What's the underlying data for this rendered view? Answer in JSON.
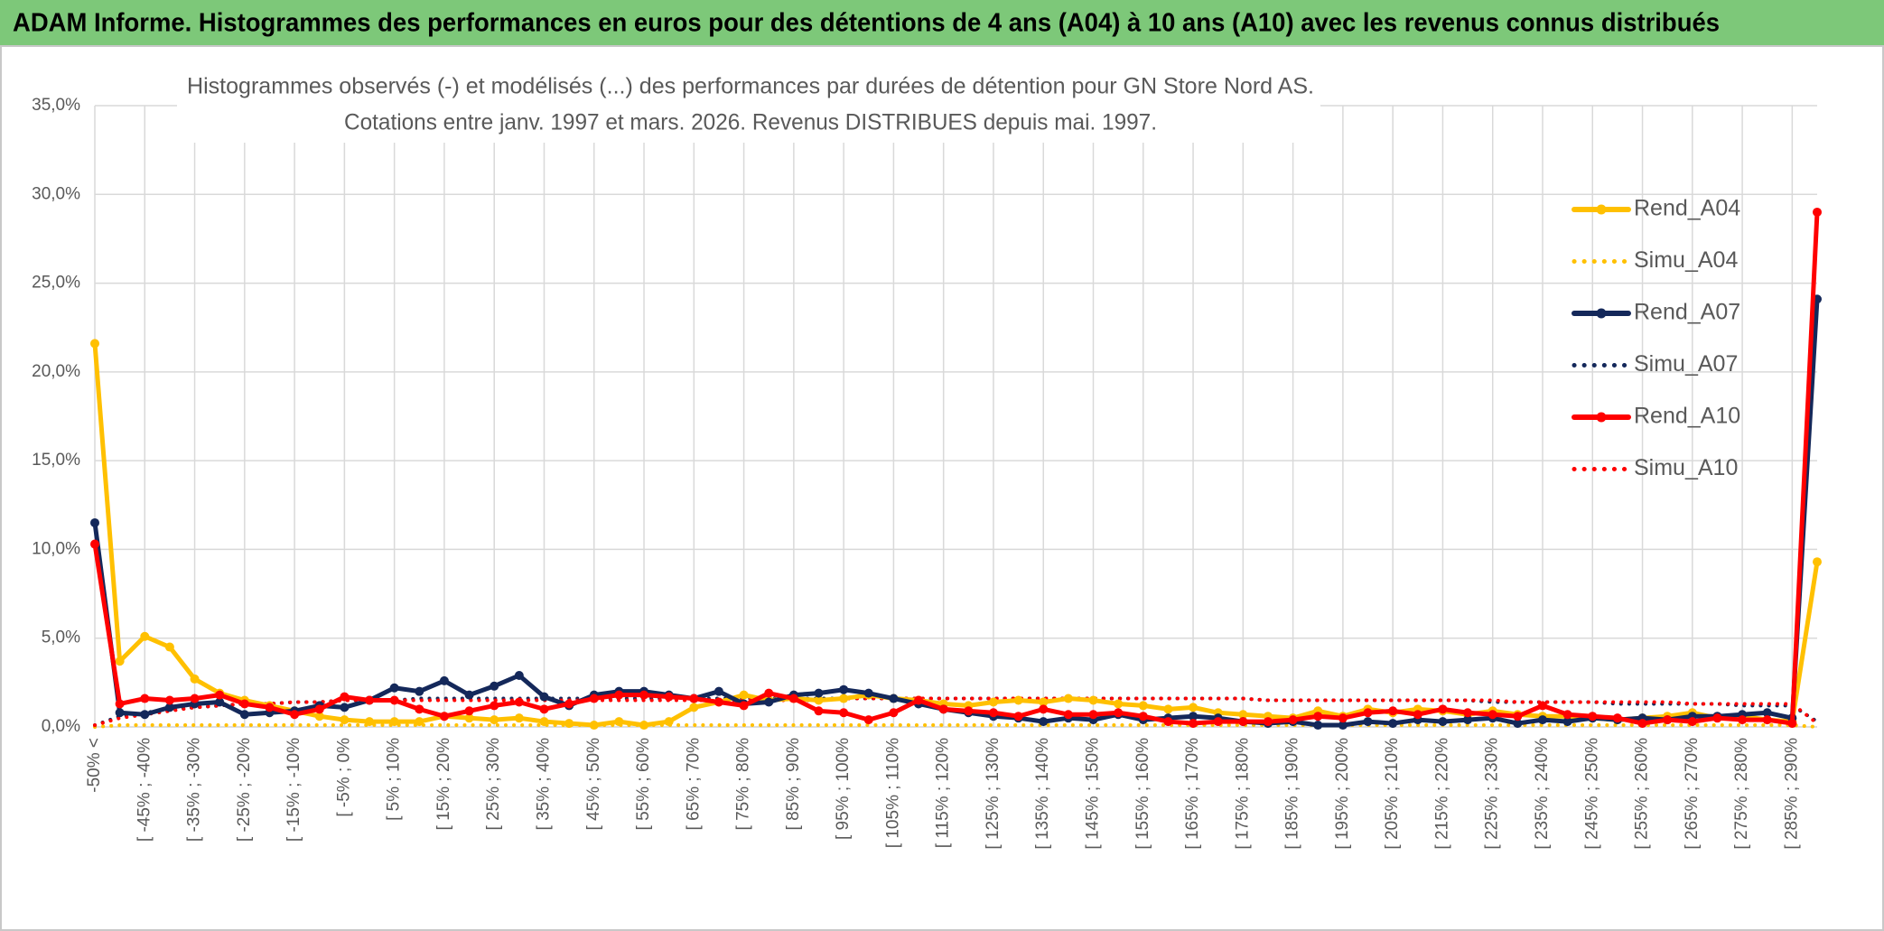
{
  "chart_data": {
    "type": "line",
    "title": "ADAM Informe. Histogrammes des performances en euros pour des détentions de 4 ans (A04) à 10 ans (A10) avec les revenus connus distribués",
    "subtitle": [
      "Histogrammes observés (-) et modélisés (...) des performances par durées de détention pour GN Store Nord AS.",
      "Cotations entre janv. 1997 et mars. 2026. Revenus DISTRIBUES depuis mai. 1997."
    ],
    "categories": [
      "-50% <",
      null,
      "[ -45% ; -40%",
      null,
      "[ -35% ; -30%",
      null,
      "[ -25% ; -20%",
      null,
      "[ -15% ; -10%",
      null,
      "[ -5% ; 0%",
      null,
      "[ 5% ; 10%",
      null,
      "[ 15% ; 20%",
      null,
      "[ 25% ; 30%",
      null,
      "[ 35% ; 40%",
      null,
      "[ 45% ; 50%",
      null,
      "[ 55% ; 60%",
      null,
      "[ 65% ; 70%",
      null,
      "[ 75% ; 80%",
      null,
      "[ 85% ; 90%",
      null,
      "[ 95% ; 100%",
      null,
      "[ 105% ; 110%",
      null,
      "[ 115% ; 120%",
      null,
      "[ 125% ; 130%",
      null,
      "[ 135% ; 140%",
      null,
      "[ 145% ; 150%",
      null,
      "[ 155% ; 160%",
      null,
      "[ 165% ; 170%",
      null,
      "[ 175% ; 180%",
      null,
      "[ 185% ; 190%",
      null,
      "[ 195% ; 200%",
      null,
      "[ 205% ; 210%",
      null,
      "[ 215% ; 220%",
      null,
      "[ 225% ; 230%",
      null,
      "[ 235% ; 240%",
      null,
      "[ 245% ; 250%",
      null,
      "[ 255% ; 260%",
      null,
      "[ 265% ; 270%",
      null,
      "[ 275% ; 280%",
      null,
      "[ 285% ; 290%",
      null
    ],
    "series": [
      {
        "name": "Rend_A04",
        "color": "#ffc000",
        "style": "solid",
        "marker": true,
        "values": [
          21.6,
          3.7,
          5.1,
          4.5,
          2.7,
          1.9,
          1.5,
          1.2,
          0.9,
          0.6,
          0.4,
          0.3,
          0.3,
          0.3,
          0.6,
          0.5,
          0.4,
          0.5,
          0.3,
          0.2,
          0.1,
          0.3,
          0.1,
          0.3,
          1.1,
          1.4,
          1.8,
          1.5,
          1.6,
          1.5,
          1.6,
          1.8,
          1.6,
          1.5,
          1.3,
          1.2,
          1.4,
          1.5,
          1.4,
          1.6,
          1.5,
          1.3,
          1.2,
          1.0,
          1.1,
          0.8,
          0.7,
          0.6,
          0.5,
          0.9,
          0.6,
          1.0,
          0.8,
          1.0,
          0.9,
          0.7,
          0.9,
          0.7,
          0.6,
          0.6,
          0.5,
          0.4,
          0.5,
          0.6,
          0.8,
          0.5,
          0.6,
          0.4,
          0.3,
          9.3
        ]
      },
      {
        "name": "Simu_A04",
        "color": "#ffc000",
        "style": "dotted",
        "marker": false,
        "values": [
          0.0,
          0.1,
          0.1,
          0.1,
          0.1,
          0.1,
          0.1,
          0.1,
          0.1,
          0.1,
          0.1,
          0.1,
          0.1,
          0.1,
          0.1,
          0.1,
          0.1,
          0.1,
          0.1,
          0.1,
          0.1,
          0.1,
          0.1,
          0.1,
          0.1,
          0.1,
          0.1,
          0.1,
          0.1,
          0.1,
          0.1,
          0.1,
          0.1,
          0.1,
          0.1,
          0.1,
          0.1,
          0.1,
          0.1,
          0.1,
          0.1,
          0.1,
          0.1,
          0.1,
          0.1,
          0.1,
          0.1,
          0.1,
          0.1,
          0.1,
          0.1,
          0.1,
          0.1,
          0.1,
          0.1,
          0.1,
          0.1,
          0.1,
          0.1,
          0.1,
          0.1,
          0.1,
          0.1,
          0.1,
          0.1,
          0.1,
          0.1,
          0.1,
          0.1,
          0.0
        ]
      },
      {
        "name": "Rend_A07",
        "color": "#14285a",
        "style": "solid",
        "marker": true,
        "values": [
          11.5,
          0.8,
          0.7,
          1.1,
          1.3,
          1.4,
          0.7,
          0.8,
          0.9,
          1.2,
          1.1,
          1.5,
          2.2,
          2.0,
          2.6,
          1.8,
          2.3,
          2.9,
          1.7,
          1.2,
          1.8,
          2.0,
          2.0,
          1.8,
          1.6,
          2.0,
          1.3,
          1.4,
          1.8,
          1.9,
          2.1,
          1.9,
          1.6,
          1.3,
          1.0,
          0.8,
          0.6,
          0.5,
          0.3,
          0.5,
          0.4,
          0.7,
          0.4,
          0.5,
          0.6,
          0.5,
          0.3,
          0.2,
          0.3,
          0.1,
          0.1,
          0.3,
          0.2,
          0.4,
          0.3,
          0.4,
          0.5,
          0.2,
          0.4,
          0.3,
          0.5,
          0.4,
          0.5,
          0.4,
          0.6,
          0.6,
          0.7,
          0.8,
          0.5,
          24.1
        ]
      },
      {
        "name": "Simu_A07",
        "color": "#14285a",
        "style": "dotted",
        "marker": false,
        "values": [
          0.1,
          0.6,
          0.8,
          1.0,
          1.1,
          1.2,
          1.3,
          1.3,
          1.4,
          1.4,
          1.5,
          1.5,
          1.5,
          1.6,
          1.6,
          1.6,
          1.6,
          1.6,
          1.6,
          1.6,
          1.6,
          1.6,
          1.6,
          1.6,
          1.6,
          1.6,
          1.6,
          1.6,
          1.6,
          1.6,
          1.6,
          1.6,
          1.6,
          1.6,
          1.6,
          1.6,
          1.6,
          1.6,
          1.6,
          1.6,
          1.6,
          1.6,
          1.6,
          1.6,
          1.6,
          1.6,
          1.6,
          1.5,
          1.5,
          1.5,
          1.5,
          1.5,
          1.5,
          1.5,
          1.5,
          1.5,
          1.4,
          1.4,
          1.4,
          1.4,
          1.4,
          1.3,
          1.3,
          1.3,
          1.3,
          1.3,
          1.2,
          1.2,
          1.2,
          0.3
        ]
      },
      {
        "name": "Rend_A10",
        "color": "#ff0000",
        "style": "solid",
        "marker": true,
        "values": [
          10.3,
          1.3,
          1.6,
          1.5,
          1.6,
          1.8,
          1.3,
          1.1,
          0.7,
          1.0,
          1.7,
          1.5,
          1.5,
          1.0,
          0.6,
          0.9,
          1.2,
          1.4,
          1.0,
          1.3,
          1.6,
          1.8,
          1.8,
          1.7,
          1.6,
          1.4,
          1.2,
          1.9,
          1.6,
          0.9,
          0.8,
          0.4,
          0.8,
          1.5,
          1.0,
          0.9,
          0.8,
          0.6,
          1.0,
          0.7,
          0.7,
          0.8,
          0.6,
          0.3,
          0.2,
          0.3,
          0.3,
          0.3,
          0.4,
          0.6,
          0.5,
          0.8,
          0.9,
          0.7,
          1.0,
          0.8,
          0.7,
          0.6,
          1.2,
          0.7,
          0.6,
          0.5,
          0.2,
          0.4,
          0.3,
          0.5,
          0.4,
          0.4,
          0.2,
          29.0
        ]
      },
      {
        "name": "Simu_A10",
        "color": "#ff0000",
        "style": "dotted",
        "marker": false,
        "values": [
          0.1,
          0.5,
          0.7,
          0.9,
          1.1,
          1.2,
          1.3,
          1.3,
          1.4,
          1.4,
          1.5,
          1.5,
          1.5,
          1.5,
          1.5,
          1.5,
          1.5,
          1.5,
          1.5,
          1.5,
          1.5,
          1.5,
          1.5,
          1.5,
          1.5,
          1.5,
          1.5,
          1.5,
          1.5,
          1.5,
          1.6,
          1.6,
          1.6,
          1.6,
          1.6,
          1.6,
          1.6,
          1.6,
          1.6,
          1.6,
          1.6,
          1.6,
          1.6,
          1.6,
          1.6,
          1.6,
          1.6,
          1.5,
          1.5,
          1.5,
          1.5,
          1.5,
          1.5,
          1.5,
          1.5,
          1.5,
          1.5,
          1.4,
          1.4,
          1.4,
          1.4,
          1.4,
          1.4,
          1.4,
          1.3,
          1.3,
          1.3,
          1.3,
          1.3,
          0.2
        ]
      }
    ],
    "ylim": [
      0,
      35
    ],
    "yticks": [
      {
        "value": 0,
        "label": "0,0%"
      },
      {
        "value": 5,
        "label": "5,0%"
      },
      {
        "value": 10,
        "label": "10,0%"
      },
      {
        "value": 15,
        "label": "15,0%"
      },
      {
        "value": 20,
        "label": "20,0%"
      },
      {
        "value": 25,
        "label": "25,0%"
      },
      {
        "value": 30,
        "label": "30,0%"
      },
      {
        "value": 35,
        "label": "35,0%"
      }
    ],
    "grid": true,
    "legend": "right"
  }
}
